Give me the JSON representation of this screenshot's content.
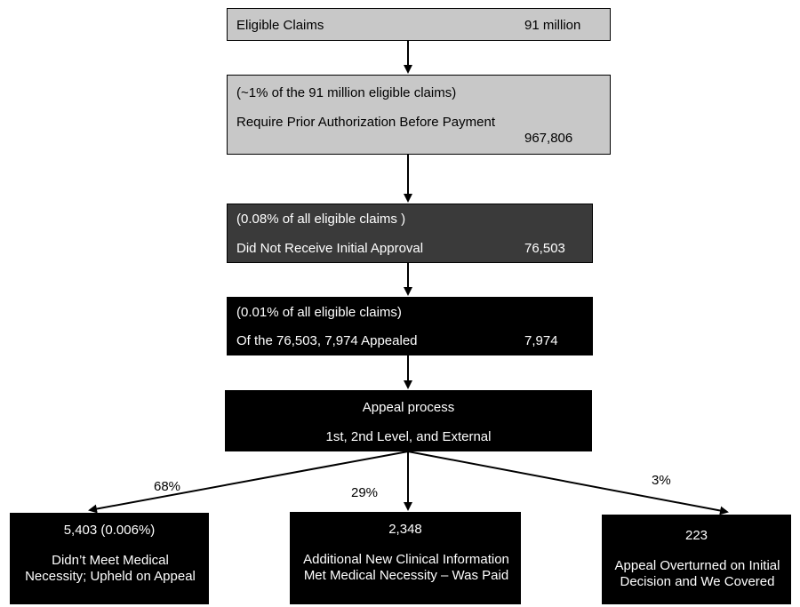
{
  "eligible": {
    "label": "Eligible Claims",
    "value": "91 million"
  },
  "prior_auth": {
    "note": "(~1% of the 91 million eligible claims)",
    "label": "Require Prior Authorization Before Payment",
    "value": "967,806"
  },
  "no_approval": {
    "note": "(0.08% of all eligible claims )",
    "label": "Did Not Receive Initial Approval",
    "value": "76,503"
  },
  "appealed": {
    "note": "(0.01% of all eligible claims)",
    "label": "Of the 76,503, 7,974 Appealed",
    "value": "7,974"
  },
  "appeal_process": {
    "title": "Appeal process",
    "levels": "1st, 2nd Level, and External"
  },
  "outcomes": [
    {
      "percent": "68%",
      "count": "5,403 (0.006%)",
      "description": "Didn’t Meet Medical Necessity; Upheld on Appeal"
    },
    {
      "percent": "29%",
      "count": "2,348",
      "description": "Additional New Clinical Information Met Medical Necessity – Was Paid"
    },
    {
      "percent": "3%",
      "count": "223",
      "description": "Appeal Overturned on Initial Decision and We Covered"
    }
  ]
}
